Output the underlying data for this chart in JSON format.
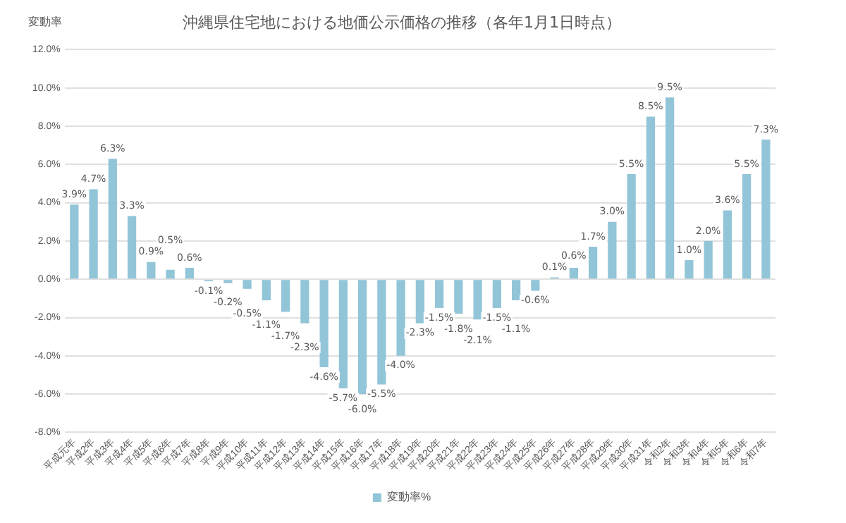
{
  "chart_data": {
    "type": "bar",
    "title": "沖縄県住宅地における地価公示価格の推移（各年1月1日時点）",
    "ylabel": "変動率",
    "categories": [
      "平成元年",
      "平成2年",
      "平成3年",
      "平成4年",
      "平成5年",
      "平成6年",
      "平成7年",
      "平成8年",
      "平成9年",
      "平成10年",
      "平成11年",
      "平成12年",
      "平成13年",
      "平成14年",
      "平成15年",
      "平成16年",
      "平成17年",
      "平成18年",
      "平成19年",
      "平成20年",
      "平成21年",
      "平成22年",
      "平成23年",
      "平成24年",
      "平成25年",
      "平成26年",
      "平成27年",
      "平成28年",
      "平成29年",
      "平成30年",
      "平成31年",
      "令和2年",
      "令和3年",
      "令和4年",
      "令和5年",
      "令和6年",
      "令和7年"
    ],
    "series": [
      {
        "name": "変動率%",
        "color": "#92c5d8",
        "values": [
          3.9,
          4.7,
          6.3,
          3.3,
          0.9,
          0.5,
          0.6,
          -0.1,
          -0.2,
          -0.5,
          -1.1,
          -1.7,
          -2.3,
          -4.6,
          -5.7,
          -6.0,
          -5.5,
          -4.0,
          -2.3,
          -1.5,
          -1.8,
          -2.1,
          -1.5,
          -1.1,
          -0.6,
          0.1,
          0.6,
          1.7,
          3.0,
          5.5,
          8.5,
          9.5,
          1.0,
          2.0,
          3.6,
          5.5,
          7.3
        ],
        "value_labels": [
          "3.9%",
          "4.7%",
          "6.3%",
          "3.3%",
          "0.9%",
          "0.5%",
          "0.6%",
          "-0.1%",
          "-0.2%",
          "-0.5%",
          "-1.1%",
          "-1.7%",
          "-2.3%",
          "-4.6%",
          "-5.7%",
          "-6.0%",
          "-5.5%",
          "-4.0%",
          "-2.3%",
          "-1.5%",
          "-1.8%",
          "-2.1%",
          "-1.5%",
          "-1.1%",
          "-0.6%",
          "0.1%",
          "0.6%",
          "1.7%",
          "3.0%",
          "5.5%",
          "8.5%",
          "9.5%",
          "1.0%",
          "2.0%",
          "3.6%",
          "5.5%",
          "7.3%"
        ]
      }
    ],
    "ylim": [
      -8,
      12
    ],
    "yticks": [
      {
        "value": -8,
        "label": "-8.0%"
      },
      {
        "value": -6,
        "label": "-6.0%"
      },
      {
        "value": -4,
        "label": "-4.0%"
      },
      {
        "value": -2,
        "label": "-2.0%"
      },
      {
        "value": 0,
        "label": "0.0%"
      },
      {
        "value": 2,
        "label": "2.0%"
      },
      {
        "value": 4,
        "label": "4.0%"
      },
      {
        "value": 6,
        "label": "6.0%"
      },
      {
        "value": 8,
        "label": "8.0%"
      },
      {
        "value": 10,
        "label": "10.0%"
      },
      {
        "value": 12,
        "label": "12.0%"
      }
    ],
    "grid": "y",
    "legend": "bottom"
  }
}
